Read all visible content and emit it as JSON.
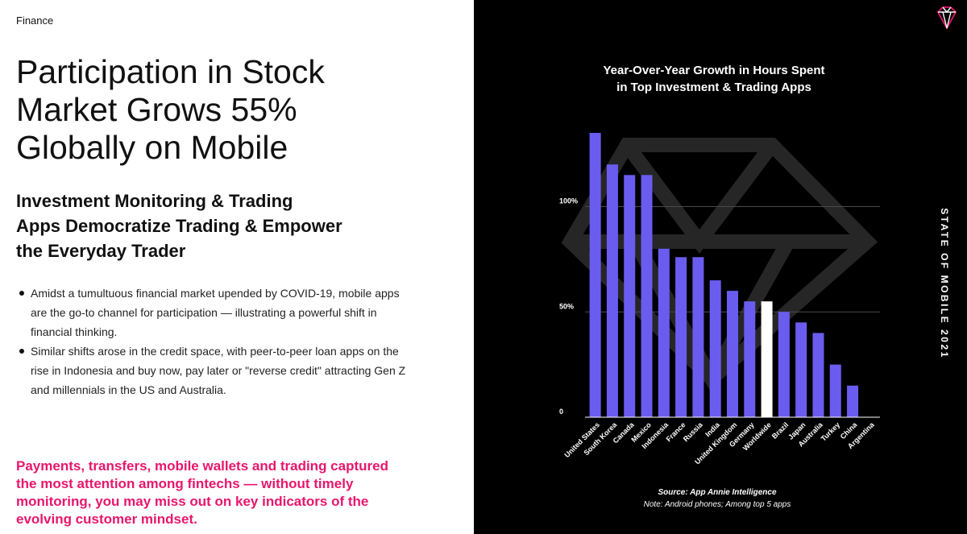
{
  "section_label": "Finance",
  "headline": [
    "Participation in Stock",
    "Market Grows 55%",
    "Globally on Mobile"
  ],
  "subhead": [
    "Investment Monitoring & Trading",
    "Apps Democratize Trading & Empower",
    "the Everyday Trader"
  ],
  "bullets": [
    "Amidst a tumultuous financial market upended by COVID-19, mobile apps are the go-to channel for participation — illustrating a powerful shift in financial thinking.",
    "Similar shifts arose in the credit space, with peer-to-peer loan apps on the rise in Indonesia and buy now, pay later or \"reverse credit\" attracting Gen Z and millennials in the US and Australia."
  ],
  "callout": "Payments, transfers, mobile wallets and trading captured the most attention among fintechs — without timely monitoring, you may miss out on key indicators of the evolving customer mindset.",
  "side_label": "STATE OF MOBILE 2021",
  "colors": {
    "accent": "#e8166c",
    "bar": "#6b5cf0",
    "highlight_bar": "#ffffff",
    "panel_bg": "#000000"
  },
  "chart_data": {
    "type": "bar",
    "title": [
      "Year-Over-Year Growth in Hours Spent",
      "in Top Investment & Trading Apps"
    ],
    "categories": [
      "United States",
      "South Korea",
      "Canada",
      "Mexico",
      "Indonesia",
      "France",
      "Russia",
      "India",
      "United Kingdom",
      "Germany",
      "Worldwide",
      "Brazil",
      "Japan",
      "Australia",
      "Turkey",
      "China",
      "Argentina"
    ],
    "values": [
      135,
      120,
      115,
      115,
      80,
      76,
      76,
      65,
      60,
      55,
      55,
      50,
      45,
      40,
      25,
      15,
      0
    ],
    "highlight": "Worldwide",
    "ylim": [
      0,
      135
    ],
    "yticks": [
      {
        "value": 0,
        "label": "0"
      },
      {
        "value": 50,
        "label": "50%"
      },
      {
        "value": 100,
        "label": "100%"
      }
    ],
    "grid": true,
    "source": "Source: App Annie Intelligence",
    "note": "Note: Android phones; Among top 5 apps"
  }
}
